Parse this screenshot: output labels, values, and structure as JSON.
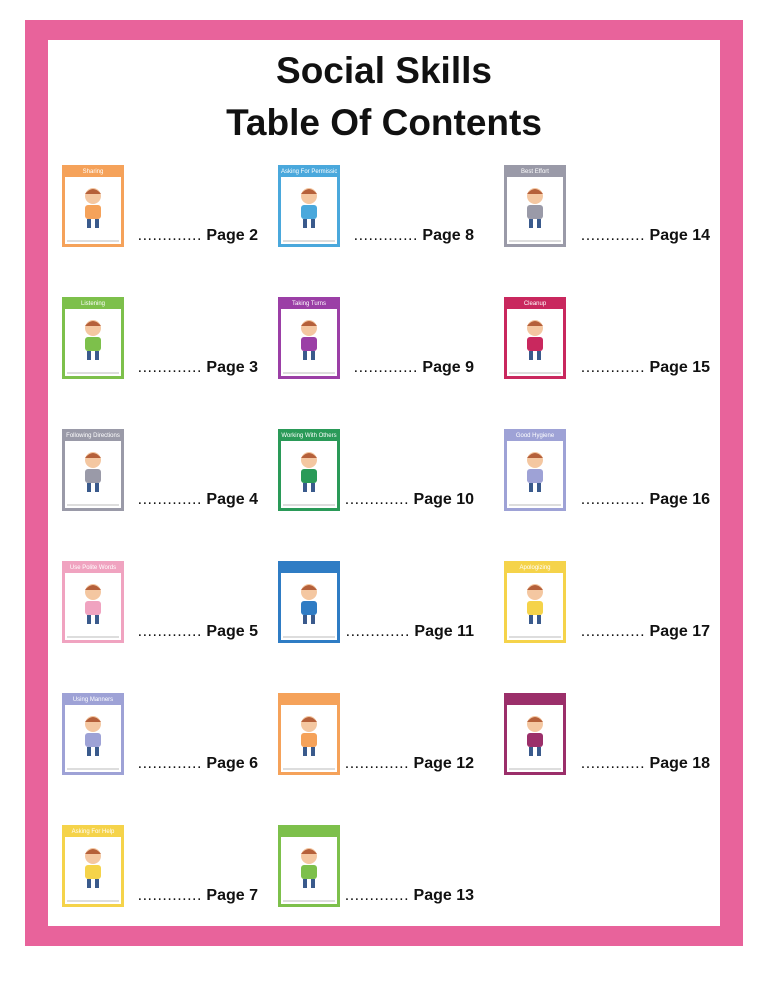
{
  "title_line1": "Social Skills",
  "title_line2": "Table Of Contents",
  "colors": {
    "border": "#e8639b"
  },
  "entries": [
    {
      "title": "Sharing",
      "page": "Page 2",
      "color": "#f5a25a"
    },
    {
      "title": "Listening",
      "page": "Page 3",
      "color": "#7dc04b"
    },
    {
      "title": "Following Directions",
      "page": "Page 4",
      "color": "#9a9aa8"
    },
    {
      "title": "Use Polite Words",
      "page": "Page 5",
      "color": "#f0a3c0"
    },
    {
      "title": "Using Manners",
      "page": "Page 6",
      "color": "#9ea2d6"
    },
    {
      "title": "Asking For Help",
      "page": "Page 7",
      "color": "#f5d34a"
    },
    {
      "title": "Asking For Permission",
      "page": "Page 8",
      "color": "#4aa8dc"
    },
    {
      "title": "Taking Turns",
      "page": "Page 9",
      "color": "#9b3fa6"
    },
    {
      "title": "Working With Others",
      "page": "Page 10",
      "color": "#2a9a58"
    },
    {
      "title": "",
      "page": "Page 11",
      "color": "#2f7cc4"
    },
    {
      "title": "",
      "page": "Page 12",
      "color": "#f5a25a"
    },
    {
      "title": "",
      "page": "Page 13",
      "color": "#7dc04b"
    },
    {
      "title": "Best Effort",
      "page": "Page 14",
      "color": "#9a9aa8"
    },
    {
      "title": "Cleanup",
      "page": "Page 15",
      "color": "#c9285e"
    },
    {
      "title": "Good Hygiene",
      "page": "Page 16",
      "color": "#9ea2d6"
    },
    {
      "title": "Apologizing",
      "page": "Page 17",
      "color": "#f5d34a"
    },
    {
      "title": "",
      "page": "Page 18",
      "color": "#9b2f6a"
    }
  ],
  "dots": "............."
}
